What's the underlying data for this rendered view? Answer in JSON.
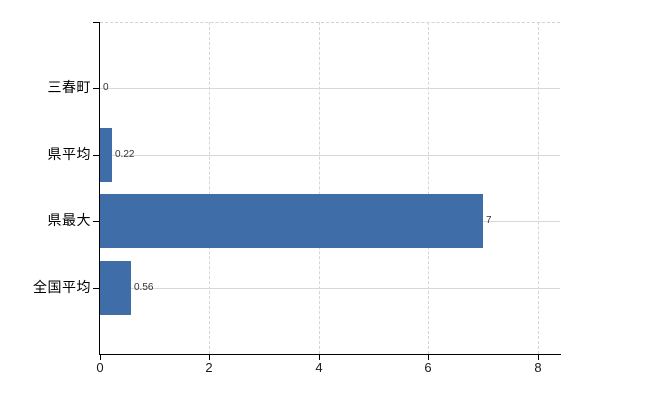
{
  "chart_data": {
    "type": "bar",
    "orientation": "horizontal",
    "title": "",
    "xlabel": "",
    "ylabel": "",
    "categories": [
      "三春町",
      "県平均",
      "県最大",
      "全国平均"
    ],
    "values": [
      0,
      0.22,
      7,
      0.56
    ],
    "value_labels": [
      "0",
      "0.22",
      "7",
      "0.56"
    ],
    "x_ticks": [
      0,
      2,
      4,
      6,
      8
    ],
    "x_tick_labels": [
      "0",
      "2",
      "4",
      "6",
      "8"
    ],
    "xlim": [
      0,
      8.41
    ],
    "grid": "horizontal-solid, vertical-dashed",
    "legend_position": "none"
  },
  "colors": {
    "bar": "#3e6da7",
    "axis": "#000000",
    "h_gridline": "#d3dcd3",
    "v_gridline": "#dad3d3",
    "top_border": "#d8d1d1",
    "category_text": "#000000",
    "tick_text": "#1a1a1a",
    "value_text": "#333333",
    "background": "#ffffff"
  }
}
